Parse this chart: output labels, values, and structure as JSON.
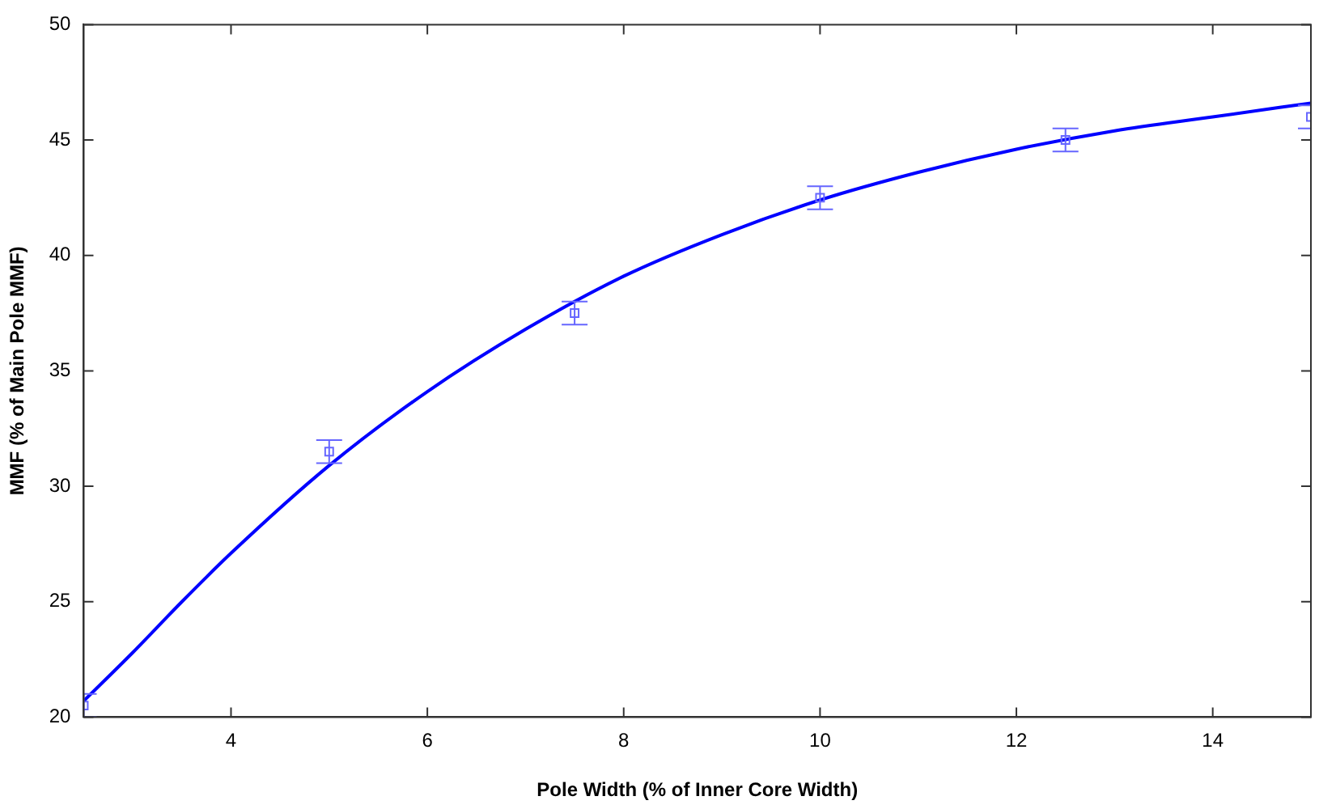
{
  "chart_data": {
    "type": "scatter",
    "xlabel": "Pole Width (% of Inner Core Width)",
    "ylabel": "MMF (% of Main Pole MMF)",
    "xlim": [
      2.5,
      15
    ],
    "ylim": [
      20,
      50
    ],
    "xticks": [
      4,
      6,
      8,
      10,
      12,
      14
    ],
    "yticks": [
      20,
      25,
      30,
      35,
      40,
      45,
      50
    ],
    "grid": false,
    "legend": false,
    "series": [
      {
        "type": "scatter",
        "color": "#6666ff",
        "marker": "square",
        "x": [
          2.5,
          5,
          7.5,
          10,
          12.5,
          15
        ],
        "values": [
          20.5,
          31.5,
          37.5,
          42.5,
          45,
          46
        ],
        "errors": [
          0.5,
          0.5,
          0.5,
          0.5,
          0.5,
          0.5
        ]
      },
      {
        "type": "line",
        "color": "#0000ff",
        "marker": "none",
        "x": [
          2.5,
          3,
          3.5,
          4,
          5,
          6,
          7,
          8,
          9,
          10,
          11,
          12,
          13,
          14,
          15
        ],
        "values": [
          20.7,
          22.8,
          25.0,
          27.1,
          30.9,
          34.1,
          36.8,
          39.1,
          40.9,
          42.4,
          43.6,
          44.6,
          45.4,
          46.0,
          46.6
        ]
      }
    ]
  }
}
